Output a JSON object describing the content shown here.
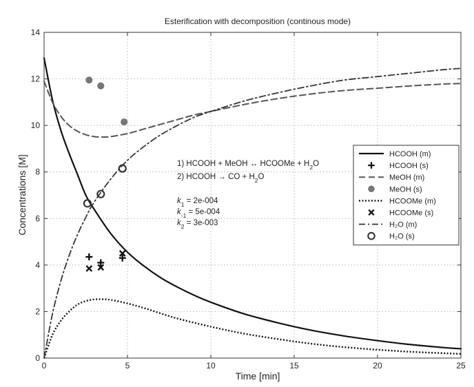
{
  "chart_data": {
    "type": "line",
    "title": "Esterification with decomposition (continous mode)",
    "xlabel": "Time [min]",
    "ylabel": "Concentrations [M]",
    "xlim": [
      0,
      25
    ],
    "ylim": [
      0,
      14
    ],
    "x_ticks": [
      "0",
      "5",
      "10",
      "15",
      "20",
      "25"
    ],
    "y_ticks": [
      "0",
      "2",
      "4",
      "6",
      "8",
      "10",
      "12",
      "14"
    ],
    "grid": true,
    "legend_position": "right",
    "annotations": {
      "reactions": [
        {
          "prefix": "1) HCOOH + MeOH ",
          "arrow": "↔",
          "text": " HCOOMe + H",
          "sub": "2",
          "suffix": "O"
        },
        {
          "prefix": "2) HCOOH ",
          "arrow": "→",
          "text": " CO + H",
          "sub": "2",
          "suffix": "O"
        }
      ],
      "rate_constants": [
        {
          "sym": "k",
          "sub": "1",
          "value": " = 2e-004"
        },
        {
          "sym": "k",
          "sub": "-1",
          "value": " = 5e-004"
        },
        {
          "sym": "k",
          "sub": "2",
          "value": " = 3e-003"
        }
      ]
    },
    "series": [
      {
        "name": "HCOOH (m)",
        "kind": "line",
        "style": "solid",
        "x": [
          0,
          0.5,
          1,
          1.5,
          2,
          2.5,
          3,
          4,
          5,
          6,
          7,
          8,
          9,
          10,
          12,
          14,
          16,
          18,
          20,
          22,
          24,
          25
        ],
        "y": [
          12.9,
          11.1,
          9.8,
          8.8,
          7.9,
          7.0,
          6.4,
          5.35,
          4.55,
          3.95,
          3.45,
          3.05,
          2.7,
          2.4,
          1.9,
          1.52,
          1.2,
          0.95,
          0.75,
          0.58,
          0.45,
          0.4
        ]
      },
      {
        "name": "HCOOH (s)",
        "kind": "marker",
        "marker": "plus",
        "x": [
          2.7,
          3.4,
          4.7
        ],
        "y": [
          4.35,
          4.1,
          4.3
        ]
      },
      {
        "name": "MeOH (m)",
        "kind": "line",
        "style": "dashed",
        "x": [
          0,
          0.5,
          1,
          1.5,
          2,
          2.5,
          3,
          3.5,
          4,
          5,
          6,
          7,
          8,
          9,
          10,
          12,
          14,
          16,
          18,
          20,
          22,
          24,
          25
        ],
        "y": [
          11.9,
          11.0,
          10.4,
          10.0,
          9.75,
          9.6,
          9.52,
          9.5,
          9.52,
          9.65,
          9.85,
          10.05,
          10.25,
          10.45,
          10.6,
          10.9,
          11.15,
          11.35,
          11.5,
          11.6,
          11.7,
          11.78,
          11.8
        ]
      },
      {
        "name": "MeOH (s)",
        "kind": "marker",
        "marker": "star",
        "x": [
          2.7,
          3.4,
          4.8
        ],
        "y": [
          11.95,
          11.7,
          10.15
        ]
      },
      {
        "name": "HCOOMe (m)",
        "kind": "line",
        "style": "dotted",
        "x": [
          0,
          0.5,
          1,
          1.5,
          2,
          2.5,
          3,
          3.5,
          4,
          5,
          6,
          7,
          8,
          10,
          12,
          14,
          16,
          18,
          20,
          22,
          24,
          25
        ],
        "y": [
          0,
          1.0,
          1.6,
          2.0,
          2.3,
          2.45,
          2.52,
          2.53,
          2.5,
          2.35,
          2.15,
          1.92,
          1.7,
          1.35,
          1.05,
          0.82,
          0.62,
          0.47,
          0.36,
          0.27,
          0.21,
          0.18
        ]
      },
      {
        "name": "HCOOMe (s)",
        "kind": "marker",
        "marker": "x",
        "x": [
          2.7,
          3.4,
          4.7
        ],
        "y": [
          3.85,
          3.9,
          4.5
        ]
      },
      {
        "name": "H₂O (m)",
        "kind": "line",
        "style": "dashdot",
        "x": [
          0,
          0.5,
          1,
          1.5,
          2,
          2.5,
          3,
          4,
          5,
          6,
          7,
          8,
          9,
          10,
          12,
          14,
          16,
          18,
          20,
          22,
          24,
          25
        ],
        "y": [
          0,
          1.9,
          3.3,
          4.4,
          5.3,
          6.05,
          6.7,
          7.7,
          8.5,
          9.1,
          9.6,
          10.0,
          10.35,
          10.6,
          11.05,
          11.4,
          11.7,
          11.95,
          12.1,
          12.25,
          12.4,
          12.45
        ]
      },
      {
        "name": "H₂O (s)",
        "kind": "marker",
        "marker": "circle",
        "x": [
          2.6,
          3.4,
          4.7
        ],
        "y": [
          6.65,
          7.05,
          8.15
        ]
      }
    ]
  }
}
